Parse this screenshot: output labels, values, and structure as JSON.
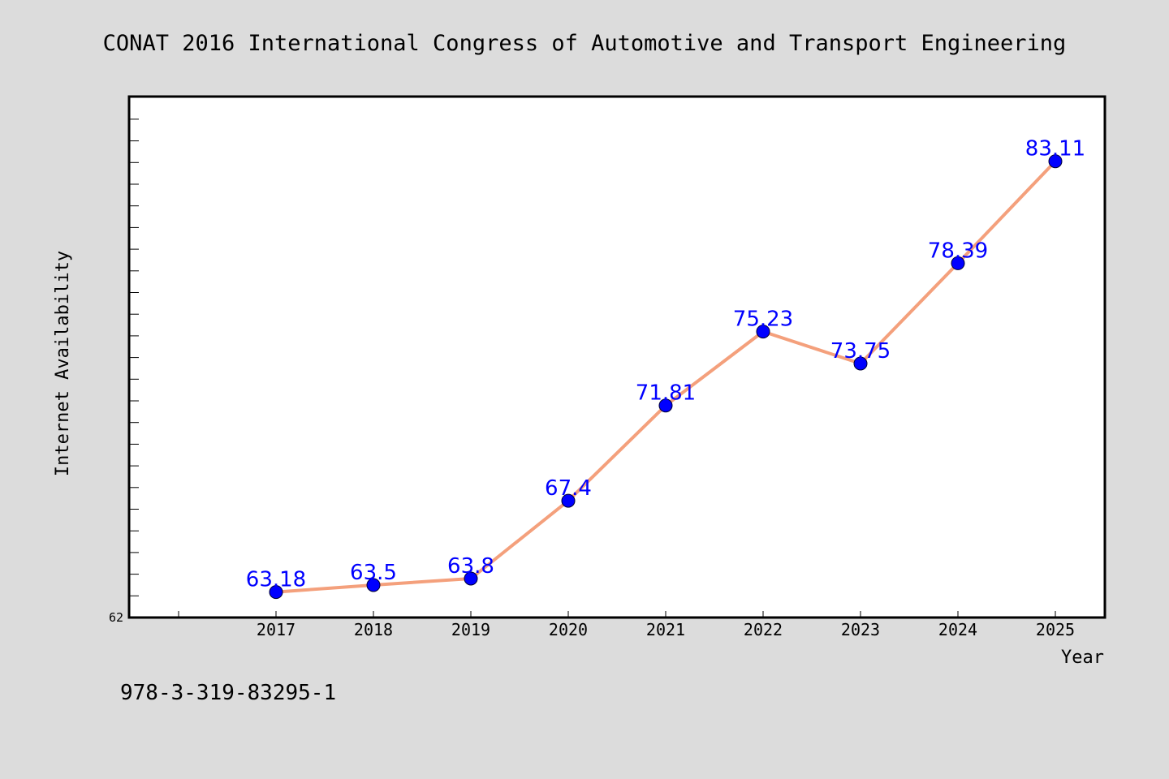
{
  "title": "CONAT 2016 International Congress of Automotive and Transport Engineering",
  "footer": "978-3-319-83295-1",
  "colors": {
    "background": "#dcdcdc",
    "plot_background": "#ffffff",
    "line": "#f4a07c",
    "marker": "#0000ff",
    "data_label": "#0000ff"
  },
  "chart_data": {
    "type": "line",
    "title": "CONAT 2016 International Congress of Automotive and Transport Engineering",
    "xlabel": "Year",
    "ylabel": "Internet Availability",
    "categories": [
      "2017",
      "2018",
      "2019",
      "2020",
      "2021",
      "2022",
      "2023",
      "2024",
      "2025"
    ],
    "series": [
      {
        "values": [
          63.18,
          63.5,
          63.8,
          67.4,
          71.81,
          75.23,
          73.75,
          78.39,
          83.11
        ],
        "labels": [
          "63.18",
          "63.5",
          "63.8",
          "67.4",
          "71.81",
          "75.23",
          "73.75",
          "78.39",
          "83.11"
        ]
      }
    ],
    "ylim": [
      62,
      86.1
    ],
    "ytick_labels": [
      "62"
    ],
    "grid": false,
    "legend": "none"
  }
}
